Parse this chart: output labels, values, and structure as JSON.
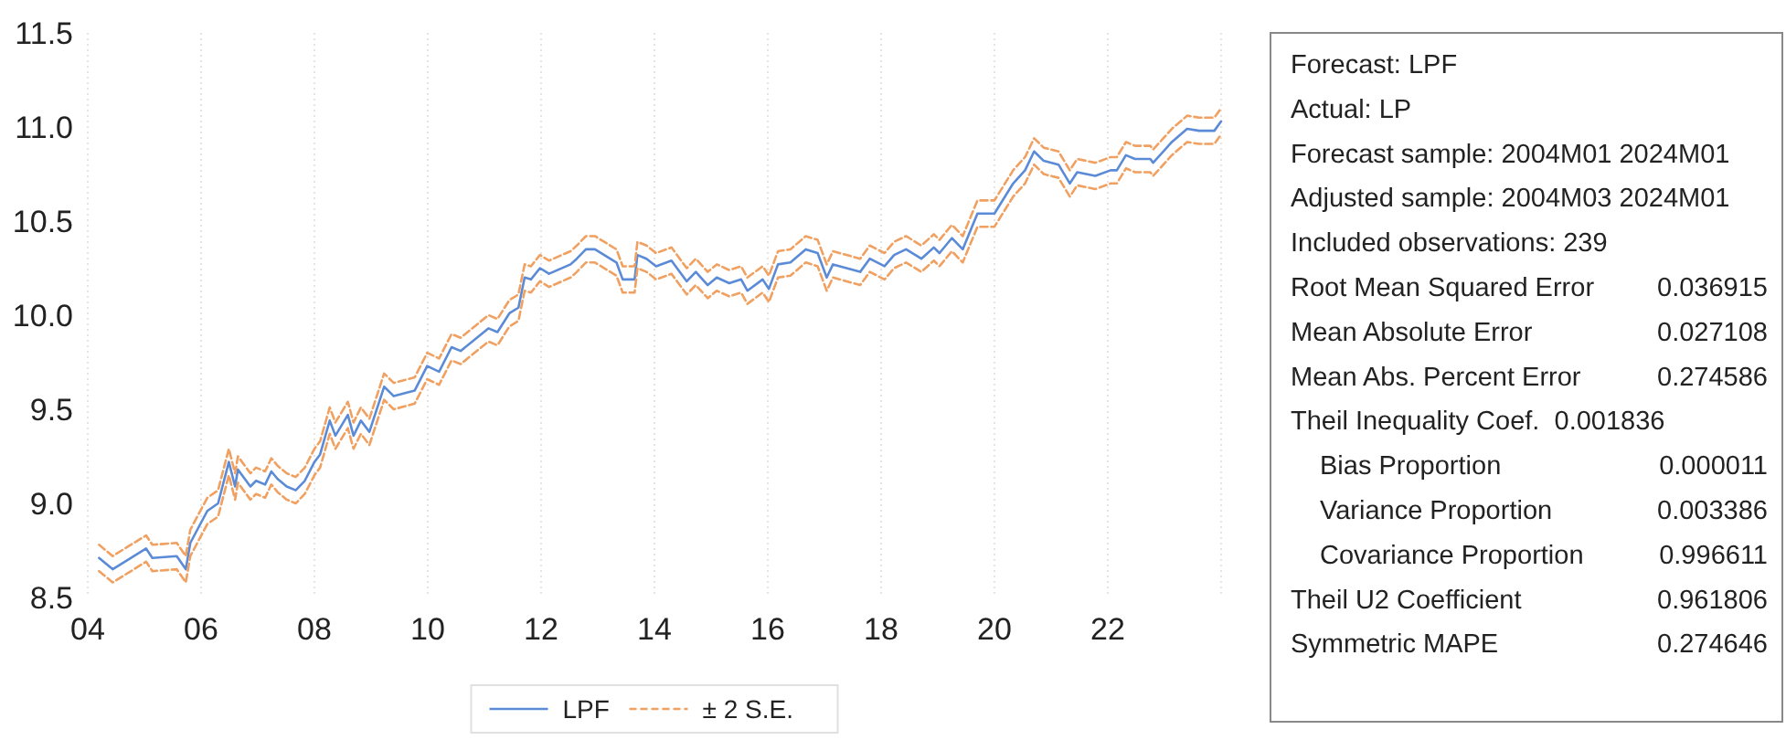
{
  "chart_data": {
    "type": "line",
    "x": [
      2004.2,
      2004.44,
      2005.03,
      2005.14,
      2005.57,
      2005.73,
      2005.81,
      2006.11,
      2006.3,
      2006.49,
      2006.6,
      2006.65,
      2006.87,
      2006.97,
      2007.13,
      2007.24,
      2007.35,
      2007.51,
      2007.67,
      2007.83,
      2008.0,
      2008.1,
      2008.27,
      2008.37,
      2008.59,
      2008.69,
      2008.82,
      2008.97,
      2009.23,
      2009.4,
      2009.77,
      2009.99,
      2010.2,
      2010.42,
      2010.58,
      2011.07,
      2011.23,
      2011.44,
      2011.6,
      2011.71,
      2011.82,
      2011.98,
      2012.14,
      2012.52,
      2012.63,
      2012.79,
      2012.95,
      2013.33,
      2013.44,
      2013.65,
      2013.7,
      2013.86,
      2014.03,
      2014.3,
      2014.57,
      2014.73,
      2014.94,
      2015.1,
      2015.32,
      2015.53,
      2015.64,
      2015.91,
      2016.02,
      2016.18,
      2016.4,
      2016.67,
      2016.88,
      2017.04,
      2017.15,
      2017.63,
      2017.8,
      2018.06,
      2018.23,
      2018.44,
      2018.71,
      2018.93,
      2019.03,
      2019.25,
      2019.44,
      2019.7,
      2020.0,
      2020.33,
      2020.54,
      2020.7,
      2020.87,
      2021.13,
      2021.33,
      2021.46,
      2021.78,
      2022.05,
      2022.16,
      2022.32,
      2022.48,
      2022.75,
      2022.8,
      2023.13,
      2023.4,
      2023.61,
      2023.88,
      2024.0
    ],
    "series": [
      {
        "name": "LPF",
        "color": "#5b8bd6",
        "line_style": "solid",
        "values": [
          8.71,
          8.65,
          8.76,
          8.71,
          8.72,
          8.65,
          8.79,
          8.96,
          9.0,
          9.22,
          9.09,
          9.18,
          9.09,
          9.12,
          9.1,
          9.17,
          9.13,
          9.09,
          9.07,
          9.12,
          9.22,
          9.26,
          9.44,
          9.36,
          9.47,
          9.36,
          9.44,
          9.38,
          9.62,
          9.57,
          9.6,
          9.73,
          9.7,
          9.83,
          9.81,
          9.93,
          9.91,
          10.01,
          10.04,
          10.2,
          10.19,
          10.25,
          10.22,
          10.27,
          10.3,
          10.35,
          10.35,
          10.28,
          10.19,
          10.19,
          10.32,
          10.3,
          10.26,
          10.29,
          10.18,
          10.23,
          10.16,
          10.2,
          10.17,
          10.19,
          10.13,
          10.19,
          10.14,
          10.27,
          10.28,
          10.35,
          10.33,
          10.2,
          10.27,
          10.23,
          10.3,
          10.26,
          10.32,
          10.35,
          10.3,
          10.36,
          10.33,
          10.41,
          10.35,
          10.54,
          10.54,
          10.7,
          10.77,
          10.87,
          10.82,
          10.8,
          10.7,
          10.76,
          10.74,
          10.77,
          10.77,
          10.85,
          10.83,
          10.83,
          10.81,
          10.92,
          10.99,
          10.98,
          10.98,
          11.03
        ]
      },
      {
        "name": "± 2 S.E.",
        "color": "#f0a060",
        "line_style": "dashed",
        "values": [
          8.78,
          8.72,
          8.83,
          8.78,
          8.79,
          8.72,
          8.86,
          9.03,
          9.07,
          9.29,
          9.16,
          9.25,
          9.16,
          9.19,
          9.17,
          9.24,
          9.2,
          9.16,
          9.14,
          9.19,
          9.29,
          9.33,
          9.51,
          9.43,
          9.54,
          9.43,
          9.51,
          9.45,
          9.69,
          9.64,
          9.67,
          9.8,
          9.77,
          9.9,
          9.88,
          10.0,
          9.98,
          10.08,
          10.11,
          10.27,
          10.26,
          10.32,
          10.29,
          10.34,
          10.37,
          10.42,
          10.42,
          10.35,
          10.26,
          10.26,
          10.39,
          10.37,
          10.33,
          10.36,
          10.25,
          10.3,
          10.23,
          10.27,
          10.24,
          10.26,
          10.2,
          10.26,
          10.21,
          10.34,
          10.35,
          10.42,
          10.4,
          10.27,
          10.34,
          10.3,
          10.37,
          10.33,
          10.39,
          10.42,
          10.37,
          10.43,
          10.4,
          10.48,
          10.42,
          10.61,
          10.61,
          10.77,
          10.84,
          10.94,
          10.89,
          10.87,
          10.77,
          10.83,
          10.81,
          10.84,
          10.84,
          10.92,
          10.9,
          10.9,
          10.88,
          10.99,
          11.06,
          11.05,
          11.05,
          11.1
        ]
      },
      {
        "color": "#f0a060",
        "line_style": "dashed",
        "values": [
          8.64,
          8.58,
          8.69,
          8.64,
          8.65,
          8.58,
          8.72,
          8.89,
          8.93,
          9.15,
          9.02,
          9.11,
          9.02,
          9.05,
          9.03,
          9.1,
          9.06,
          9.02,
          9.0,
          9.05,
          9.15,
          9.19,
          9.37,
          9.29,
          9.4,
          9.29,
          9.37,
          9.31,
          9.55,
          9.5,
          9.53,
          9.66,
          9.63,
          9.76,
          9.74,
          9.86,
          9.84,
          9.94,
          9.97,
          10.13,
          10.12,
          10.18,
          10.15,
          10.2,
          10.23,
          10.28,
          10.28,
          10.21,
          10.12,
          10.12,
          10.25,
          10.23,
          10.19,
          10.22,
          10.11,
          10.16,
          10.09,
          10.13,
          10.1,
          10.12,
          10.06,
          10.12,
          10.07,
          10.2,
          10.21,
          10.28,
          10.26,
          10.13,
          10.2,
          10.16,
          10.23,
          10.19,
          10.25,
          10.28,
          10.23,
          10.29,
          10.26,
          10.34,
          10.28,
          10.47,
          10.47,
          10.63,
          10.7,
          10.8,
          10.75,
          10.73,
          10.63,
          10.69,
          10.67,
          10.7,
          10.7,
          10.78,
          10.76,
          10.76,
          10.74,
          10.85,
          10.92,
          10.91,
          10.91,
          10.96
        ]
      }
    ],
    "xlim": [
      2004,
      2024
    ],
    "xticks": [
      {
        "value": 2004,
        "label": "04"
      },
      {
        "value": 2006,
        "label": "06"
      },
      {
        "value": 2008,
        "label": "08"
      },
      {
        "value": 2010,
        "label": "10"
      },
      {
        "value": 2012,
        "label": "12"
      },
      {
        "value": 2014,
        "label": "14"
      },
      {
        "value": 2016,
        "label": "16"
      },
      {
        "value": 2018,
        "label": "18"
      },
      {
        "value": 2020,
        "label": "20"
      },
      {
        "value": 2022,
        "label": "22"
      },
      {
        "value": 2024,
        "label": null
      }
    ],
    "ylim": [
      8.5,
      11.5
    ],
    "yticks": [
      8.5,
      {
        "value": 9,
        "label": "9.0"
      },
      9.5,
      {
        "value": 10,
        "label": "10.0"
      },
      10.5,
      {
        "value": 11,
        "label": "11.0"
      },
      11.5
    ],
    "grid": "x",
    "legend": "bottom",
    "marker": "none",
    "annotations": [
      "Forecast: LPF",
      "Actual: LP",
      "Forecast sample: 2004M01 2024M01",
      "Adjusted sample: 2004M03 2024M01",
      "Included observations: 239",
      "Root Mean Squared Error\t0.036915",
      "Mean Absolute Error\t0.027108",
      "Mean Abs. Percent Error\t0.274586",
      "Theil Inequality Coef.  0.001836",
      "    Bias Proportion\t0.000011",
      "    Variance Proportion\t0.003386",
      "    Covariance Proportion\t0.996611",
      "Theil U2 Coefficient\t0.961806",
      "Symmetric MAPE\t0.274646"
    ]
  }
}
